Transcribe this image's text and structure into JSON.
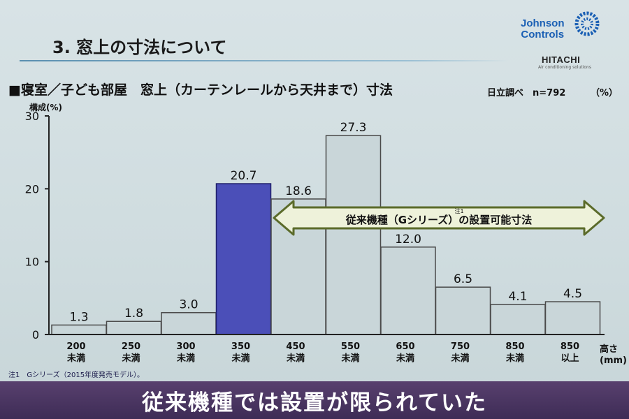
{
  "slide": {
    "title": "3. 窓上の寸法について",
    "logo_johnson_line1": "Johnson",
    "logo_johnson_line2": "Controls",
    "logo_hitachi": "HITACHI",
    "logo_hitachi_tagline": "Air conditioning solutions",
    "footnote": "注1　Gシリーズ（2015年度発売モデル）。",
    "banner": "従来機種では設置が限られていた"
  },
  "chart_data": {
    "type": "bar",
    "title": "■寝室／子ども部屋　窓上（カーテンレールから天井まで）寸法",
    "source": "日立調べ　n=792",
    "unit": "（%）",
    "ylabel": "構成(%)",
    "xlabel": "高さ(mm)",
    "xlabel_line1": "高さ",
    "xlabel_line2": "(mm)",
    "ylim": [
      0,
      30
    ],
    "yticks": [
      "0",
      "10",
      "20",
      "30"
    ],
    "categories": [
      {
        "line1": "200",
        "line2": "未満"
      },
      {
        "line1": "250",
        "line2": "未満"
      },
      {
        "line1": "300",
        "line2": "未満"
      },
      {
        "line1": "350",
        "line2": "未満"
      },
      {
        "line1": "450",
        "line2": "未満"
      },
      {
        "line1": "550",
        "line2": "未満"
      },
      {
        "line1": "650",
        "line2": "未満"
      },
      {
        "line1": "750",
        "line2": "未満"
      },
      {
        "line1": "850",
        "line2": "未満"
      },
      {
        "line1": "850",
        "line2": "以上"
      }
    ],
    "values": [
      1.3,
      1.8,
      3.0,
      20.7,
      18.6,
      27.3,
      12.0,
      6.5,
      4.1,
      4.5
    ],
    "value_labels": [
      "1.3",
      "1.8",
      "3.0",
      "20.7",
      "18.6",
      "27.3",
      "12.0",
      "6.5",
      "4.1",
      "4.5"
    ],
    "highlight_index": 3,
    "annotation": {
      "text": "従来機種（Gシリーズ）の設置可能寸法",
      "note_marker": "注1",
      "from_index": 4,
      "to_index": 9
    },
    "colors": {
      "bar": "#c9d6d9",
      "highlight": "#4b4fb8",
      "arrow_fill": "#eef2da",
      "arrow_stroke": "#5b6b2a"
    }
  }
}
